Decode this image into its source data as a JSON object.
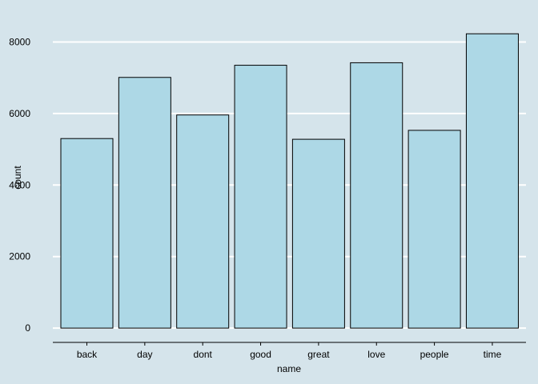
{
  "chart_data": {
    "type": "bar",
    "categories": [
      "back",
      "day",
      "dont",
      "good",
      "great",
      "love",
      "people",
      "time"
    ],
    "series": [
      {
        "values": [
          5300,
          7010,
          5960,
          7350,
          5280,
          7420,
          5530,
          8230
        ]
      }
    ],
    "title": "",
    "xlabel": "name",
    "ylabel": "count",
    "ylim": [
      -400,
      8660
    ],
    "yticks": [
      0,
      2000,
      4000,
      6000,
      8000
    ],
    "grid": true,
    "colors": {
      "background": "#d5e4eb",
      "bar_fill": "#add8e6",
      "bar_stroke": "#000000",
      "grid": "#ffffff"
    }
  }
}
